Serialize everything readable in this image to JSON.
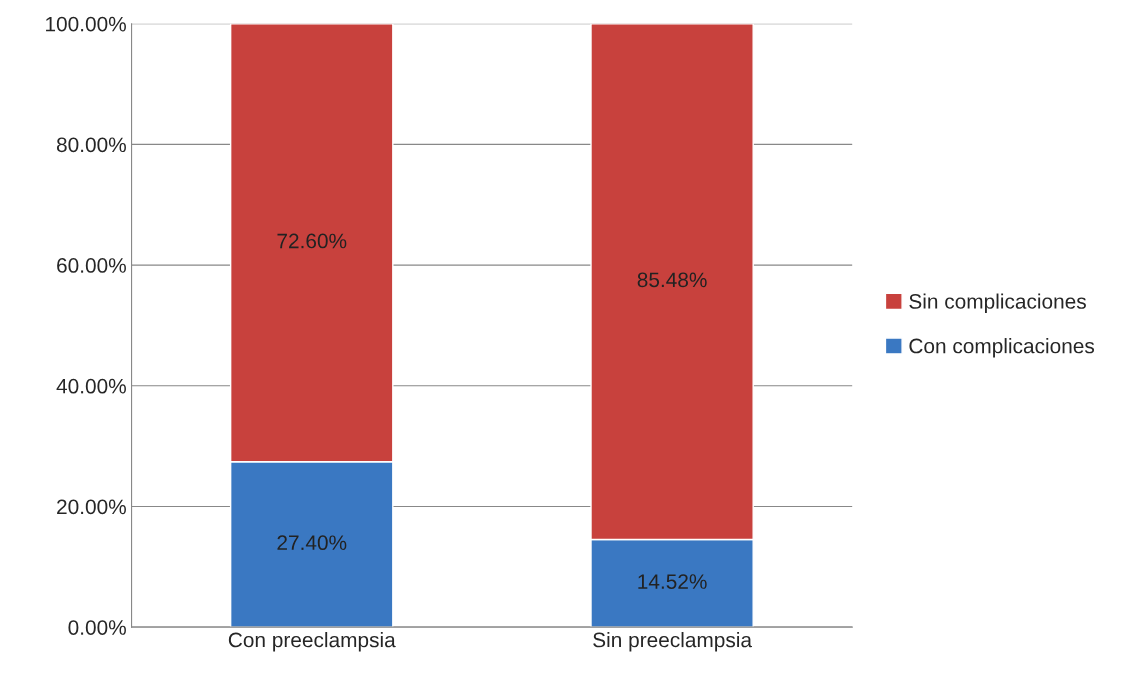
{
  "chart_data": {
    "type": "bar",
    "stacked": true,
    "categories": [
      "Con preeclampsia",
      "Sin preeclampsia"
    ],
    "series": [
      {
        "name": "Con complicaciones",
        "color": "#3a78c2",
        "values": [
          27.4,
          14.52
        ],
        "value_labels": [
          "27.40%",
          "14.52%"
        ]
      },
      {
        "name": "Sin complicaciones",
        "color": "#c8413d",
        "values": [
          72.6,
          85.48
        ],
        "value_labels": [
          "72.60%",
          "85.48%"
        ]
      }
    ],
    "ylim": [
      0,
      100
    ],
    "yticks": [
      {
        "value": 0,
        "label": "0.00%"
      },
      {
        "value": 20,
        "label": "20.00%"
      },
      {
        "value": 40,
        "label": "40.00%"
      },
      {
        "value": 60,
        "label": "60.00%"
      },
      {
        "value": 80,
        "label": "80.00%"
      },
      {
        "value": 100,
        "label": "100.00%"
      }
    ],
    "grid": "y",
    "legend": "right"
  }
}
